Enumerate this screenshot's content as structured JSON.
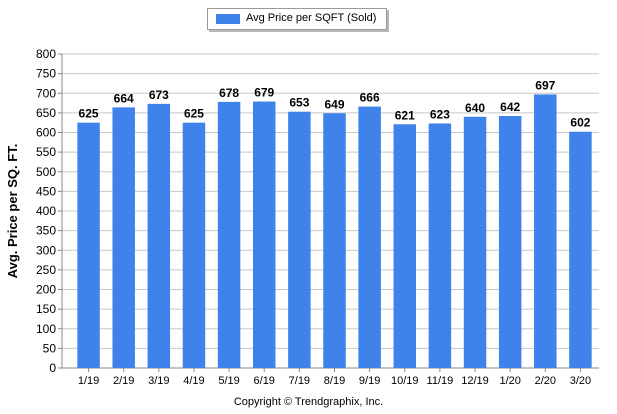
{
  "legend": {
    "label": "Avg Price per SQFT (Sold)"
  },
  "footer": {
    "copyright": "Copyright © Trendgraphix, Inc."
  },
  "colors": {
    "bar": "#3f82ea",
    "grid": "#c8c8c8",
    "axis": "#888888"
  },
  "chart_data": {
    "type": "bar",
    "categories": [
      "1/19",
      "2/19",
      "3/19",
      "4/19",
      "5/19",
      "6/19",
      "7/19",
      "8/19",
      "9/19",
      "10/19",
      "11/19",
      "12/19",
      "1/20",
      "2/20",
      "3/20"
    ],
    "series": [
      {
        "name": "Avg Price per SQFT (Sold)",
        "values": [
          625,
          664,
          673,
          625,
          678,
          679,
          653,
          649,
          666,
          621,
          623,
          640,
          642,
          697,
          602
        ]
      }
    ],
    "ylabel": "Avg. Price per SQ. FT.",
    "xlabel": "",
    "ylim": [
      0,
      800
    ],
    "yticks": [
      0,
      50,
      100,
      150,
      200,
      250,
      300,
      350,
      400,
      450,
      500,
      550,
      600,
      650,
      700,
      750,
      800
    ],
    "grid": true,
    "legend_position": "top-center"
  }
}
